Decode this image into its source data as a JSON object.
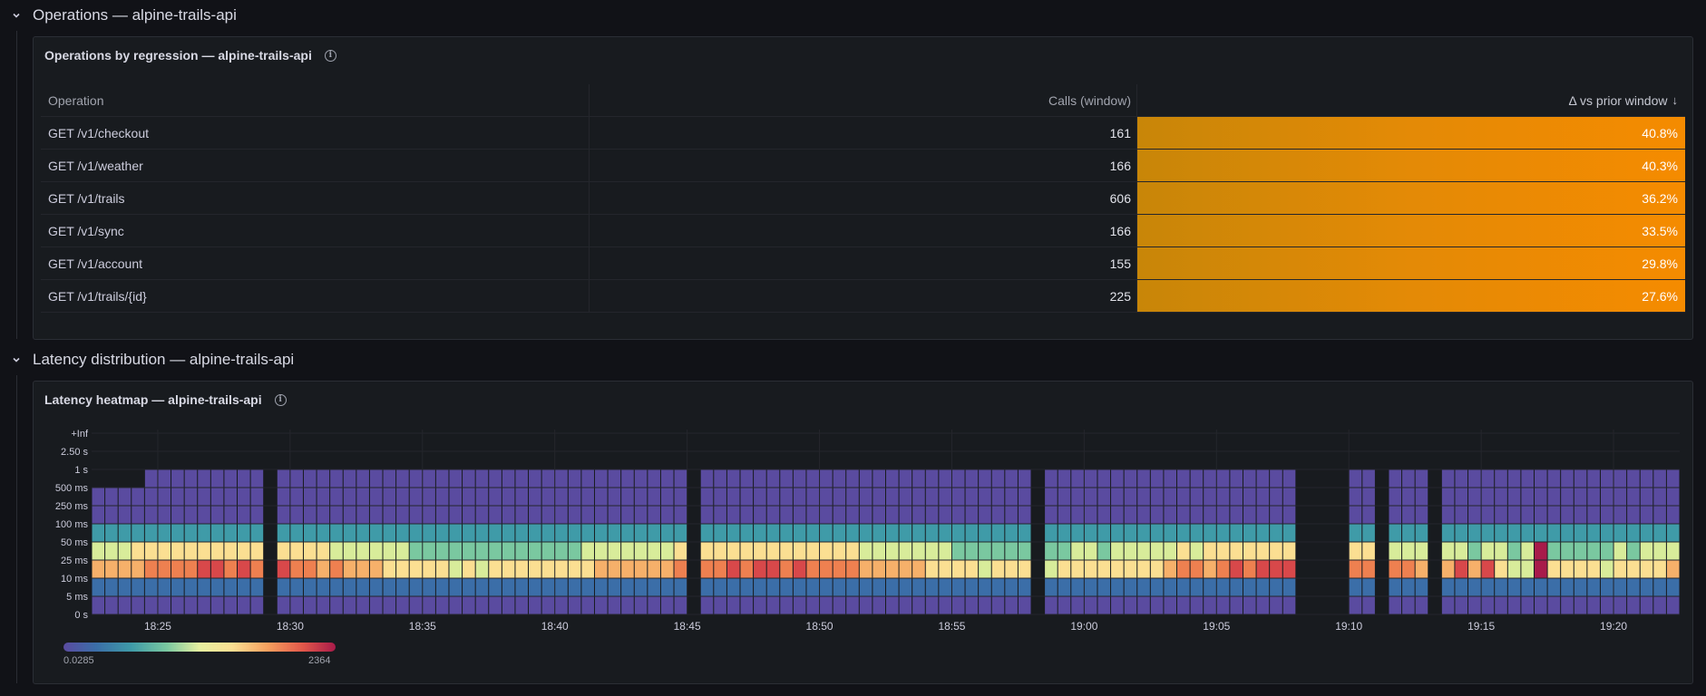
{
  "sections": [
    {
      "title": "Operations — alpine-trails-api"
    },
    {
      "title": "Latency distribution — alpine-trails-api"
    }
  ],
  "ops_panel": {
    "title": "Operations by regression — alpine-trails-api",
    "columns": [
      "Operation",
      "Calls (window)",
      "Δ vs prior window"
    ],
    "sort_icon": "arrow-down-icon",
    "rows": [
      {
        "op": "GET /v1/checkout",
        "calls": "161",
        "delta": "40.8%"
      },
      {
        "op": "GET /v1/weather",
        "calls": "166",
        "delta": "40.3%"
      },
      {
        "op": "GET /v1/trails",
        "calls": "606",
        "delta": "36.2%"
      },
      {
        "op": "GET /v1/sync",
        "calls": "166",
        "delta": "33.5%"
      },
      {
        "op": "GET /v1/account",
        "calls": "155",
        "delta": "29.8%"
      },
      {
        "op": "GET /v1/trails/{id}",
        "calls": "225",
        "delta": "27.6%"
      }
    ]
  },
  "heatmap_panel": {
    "title": "Latency heatmap — alpine-trails-api",
    "legend_min": "0.0285",
    "legend_max": "2364"
  },
  "colors": {
    "background": "#111217",
    "panel": "#181b1f",
    "bar_gauge": "#f58b00"
  },
  "chart_data": {
    "type": "heatmap",
    "title": "Latency heatmap — alpine-trails-api",
    "y_buckets": [
      "0 s",
      "5 ms",
      "10 ms",
      "25 ms",
      "50 ms",
      "100 ms",
      "250 ms",
      "500 ms",
      "1 s",
      "2.50 s",
      "+Inf"
    ],
    "x_ticks": [
      "18:25",
      "18:30",
      "18:35",
      "18:40",
      "18:45",
      "18:50",
      "18:55",
      "19:00",
      "19:05",
      "19:10",
      "19:15",
      "19:20"
    ],
    "color_scale": {
      "min": 0.0285,
      "max": 2364
    },
    "gaps": [
      "18:29",
      "18:45",
      "18:58",
      "19:08-19:10",
      "19:11",
      "19:13"
    ]
  }
}
